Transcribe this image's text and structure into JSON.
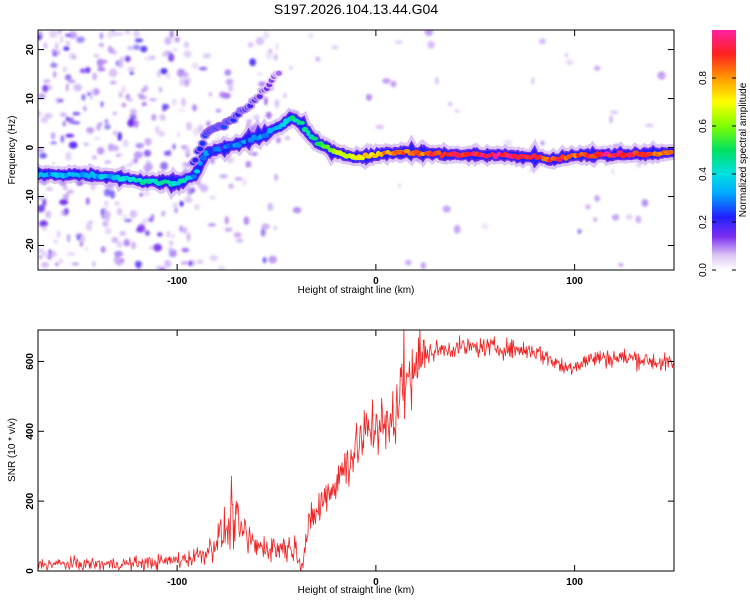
{
  "title": "S197.2026.104.13.44.G04",
  "chart_data": [
    {
      "type": "heatmap",
      "xlabel": "Height of straight line (km)",
      "ylabel": "Frequency (Hz)",
      "xlim": [
        -170,
        150
      ],
      "ylim": [
        -25,
        24
      ],
      "x_ticks": [
        -100,
        0,
        100
      ],
      "x_tick_labels": [
        "-100",
        "0",
        "100"
      ],
      "y_ticks": [
        -20,
        -10,
        0,
        10,
        20
      ],
      "y_tick_labels": [
        "-20",
        "-10",
        "0",
        "10",
        "20"
      ],
      "ridge": {
        "x": [
          -170,
          -150,
          -130,
          -115,
          -100,
          -92,
          -85,
          -75,
          -60,
          -50,
          -42,
          -38,
          -30,
          -20,
          -10,
          0,
          10,
          20,
          40,
          60,
          80,
          90,
          100,
          120,
          150
        ],
        "y": [
          -5.5,
          -5.5,
          -6.0,
          -7.0,
          -7.0,
          -6.0,
          -1.0,
          0.0,
          2.0,
          4.0,
          6.0,
          5.0,
          1.0,
          -1.0,
          -2.0,
          -1.5,
          -1.0,
          -1.0,
          -1.5,
          -1.5,
          -2.0,
          -2.5,
          -1.5,
          -1.5,
          -1.0
        ],
        "amplitude": [
          0.35,
          0.35,
          0.35,
          0.45,
          0.45,
          0.35,
          0.25,
          0.25,
          0.3,
          0.35,
          0.45,
          0.45,
          0.5,
          0.6,
          0.7,
          0.75,
          0.85,
          0.85,
          0.9,
          0.95,
          0.9,
          0.85,
          0.85,
          0.95,
          0.8
        ]
      },
      "branch": {
        "x": [
          -92,
          -85,
          -75,
          -65,
          -55,
          -48
        ],
        "y": [
          -3.0,
          3.0,
          5.0,
          8.0,
          12.0,
          16.0
        ],
        "amplitude": [
          0.15,
          0.2,
          0.2,
          0.15,
          0.1,
          0.05
        ]
      },
      "colorbar": {
        "label": "Normalized spectral amplitude",
        "range": [
          0,
          1
        ],
        "ticks": [
          0,
          0.2,
          0.4,
          0.6,
          0.8
        ],
        "tick_labels": [
          "0.0",
          "0.2",
          "0.4",
          "0.6",
          "0.8"
        ]
      }
    },
    {
      "type": "line",
      "xlabel": "Height of straight line (km)",
      "ylabel": "SNR (10 * v/v)",
      "xlim": [
        -170,
        150
      ],
      "ylim": [
        0,
        690
      ],
      "x_ticks": [
        -100,
        0,
        100
      ],
      "x_tick_labels": [
        "-100",
        "0",
        "100"
      ],
      "y_ticks": [
        0,
        200,
        400,
        600
      ],
      "y_tick_labels": [
        "0",
        "200",
        "400",
        "600"
      ],
      "color": "#ee2222",
      "series": [
        {
          "name": "SNR",
          "x": [
            -170,
            -150,
            -130,
            -110,
            -95,
            -85,
            -80,
            -75,
            -72,
            -68,
            -64,
            -60,
            -55,
            -50,
            -45,
            -40,
            -37,
            -34,
            -30,
            -25,
            -20,
            -15,
            -10,
            -5,
            0,
            5,
            10,
            15,
            20,
            25,
            30,
            40,
            60,
            80,
            90,
            95,
            100,
            110,
            120,
            130,
            140,
            150
          ],
          "y": [
            20,
            20,
            20,
            25,
            35,
            55,
            90,
            120,
            150,
            120,
            90,
            70,
            70,
            65,
            70,
            60,
            20,
            120,
            170,
            220,
            260,
            300,
            350,
            400,
            430,
            400,
            460,
            540,
            600,
            620,
            630,
            640,
            640,
            630,
            600,
            580,
            590,
            610,
            610,
            610,
            600,
            590
          ]
        }
      ]
    }
  ]
}
